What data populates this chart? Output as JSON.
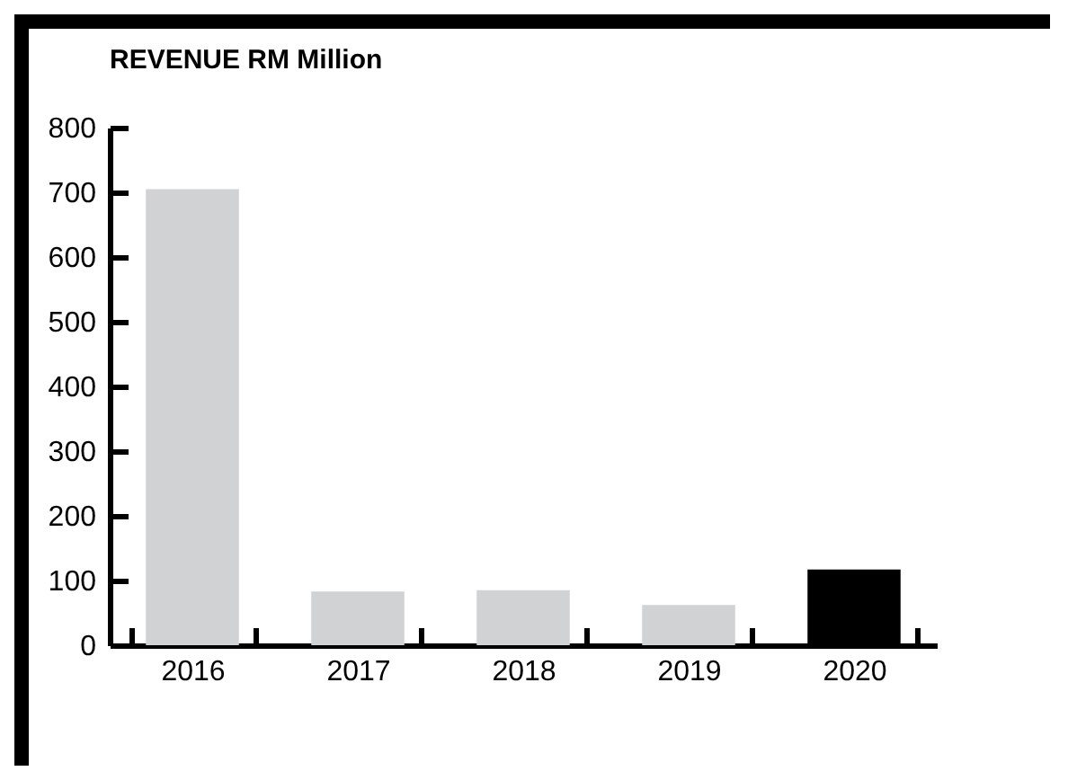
{
  "chart_data": {
    "type": "bar",
    "title": "REVENUE RM Million",
    "categories": [
      "2016",
      "2017",
      "2018",
      "2019",
      "2020"
    ],
    "values": [
      705,
      83,
      85,
      62,
      117
    ],
    "colors": [
      "#d1d2d4",
      "#d1d2d4",
      "#d1d2d4",
      "#d1d2d4",
      "#000000"
    ],
    "ylim": [
      0,
      800
    ],
    "yticks": [
      0,
      100,
      200,
      300,
      400,
      500,
      600,
      700,
      800
    ],
    "grid": false
  }
}
